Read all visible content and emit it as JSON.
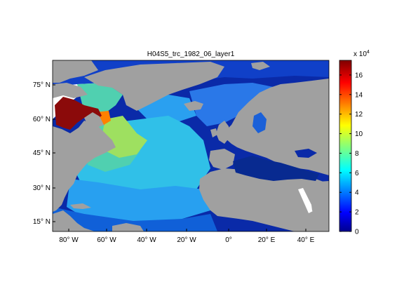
{
  "title": "H04S5_trc_1982_06_layer1",
  "lon_ticks": [
    "80° W",
    "60° W",
    "40° W",
    "20° W",
    "0°",
    "20° E",
    "40° E"
  ],
  "lat_ticks": [
    "75° N",
    "60° N",
    "45° N",
    "30° N",
    "15° N"
  ],
  "colorbar": {
    "exponent_label": "x 10",
    "exponent_power": "4",
    "ticks": [
      "0",
      "2",
      "4",
      "6",
      "8",
      "10",
      "12",
      "14",
      "16"
    ],
    "min": 0,
    "max": 17.5,
    "colormap": "jet"
  },
  "colors": {
    "land": "#a0a0a0",
    "no_data": "#ffffff"
  }
}
